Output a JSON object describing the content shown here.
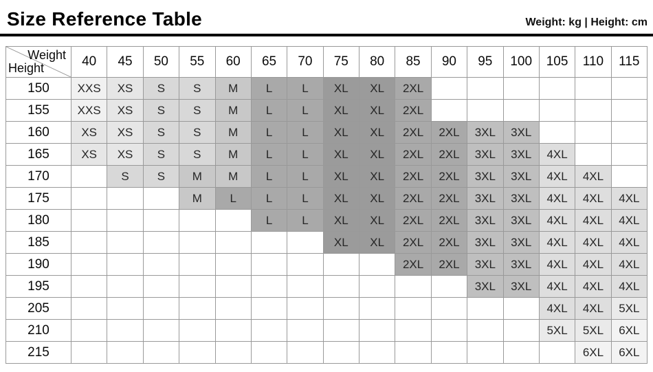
{
  "page": {
    "title": "Size Reference Table",
    "units_label": "Weight: kg | Height: cm"
  },
  "chart_data": {
    "type": "table",
    "title": "Size Reference Table",
    "corner": {
      "top_label": "Weight",
      "bottom_label": "Height"
    },
    "weight_columns": [
      "40",
      "45",
      "50",
      "55",
      "60",
      "65",
      "70",
      "75",
      "80",
      "85",
      "90",
      "95",
      "100",
      "105",
      "110",
      "115"
    ],
    "rows": [
      {
        "height": "150",
        "cells": [
          "XXS",
          "XS",
          "S",
          "S",
          "M",
          "L",
          "L",
          "XL",
          "XL",
          "2XL",
          "",
          "",
          "",
          "",
          "",
          ""
        ]
      },
      {
        "height": "155",
        "cells": [
          "XXS",
          "XS",
          "S",
          "S",
          "M",
          "L",
          "L",
          "XL",
          "XL",
          "2XL",
          "",
          "",
          "",
          "",
          "",
          ""
        ]
      },
      {
        "height": "160",
        "cells": [
          "XS",
          "XS",
          "S",
          "S",
          "M",
          "L",
          "L",
          "XL",
          "XL",
          "2XL",
          "2XL",
          "3XL",
          "3XL",
          "",
          "",
          ""
        ]
      },
      {
        "height": "165",
        "cells": [
          "XS",
          "XS",
          "S",
          "S",
          "M",
          "L",
          "L",
          "XL",
          "XL",
          "2XL",
          "2XL",
          "3XL",
          "3XL",
          "4XL",
          "",
          ""
        ]
      },
      {
        "height": "170",
        "cells": [
          "",
          "S",
          "S",
          "M",
          "M",
          "L",
          "L",
          "XL",
          "XL",
          "2XL",
          "2XL",
          "3XL",
          "3XL",
          "4XL",
          "4XL",
          ""
        ]
      },
      {
        "height": "175",
        "cells": [
          "",
          "",
          "",
          "M",
          "L",
          "L",
          "L",
          "XL",
          "XL",
          "2XL",
          "2XL",
          "3XL",
          "3XL",
          "4XL",
          "4XL",
          "4XL"
        ]
      },
      {
        "height": "180",
        "cells": [
          "",
          "",
          "",
          "",
          "",
          "L",
          "L",
          "XL",
          "XL",
          "2XL",
          "2XL",
          "3XL",
          "3XL",
          "4XL",
          "4XL",
          "4XL"
        ]
      },
      {
        "height": "185",
        "cells": [
          "",
          "",
          "",
          "",
          "",
          "",
          "",
          "XL",
          "XL",
          "2XL",
          "2XL",
          "3XL",
          "3XL",
          "4XL",
          "4XL",
          "4XL"
        ]
      },
      {
        "height": "190",
        "cells": [
          "",
          "",
          "",
          "",
          "",
          "",
          "",
          "",
          "",
          "2XL",
          "2XL",
          "3XL",
          "3XL",
          "4XL",
          "4XL",
          "4XL"
        ]
      },
      {
        "height": "195",
        "cells": [
          "",
          "",
          "",
          "",
          "",
          "",
          "",
          "",
          "",
          "",
          "",
          "3XL",
          "3XL",
          "4XL",
          "4XL",
          "4XL"
        ]
      },
      {
        "height": "205",
        "cells": [
          "",
          "",
          "",
          "",
          "",
          "",
          "",
          "",
          "",
          "",
          "",
          "",
          "",
          "4XL",
          "4XL",
          "5XL"
        ]
      },
      {
        "height": "210",
        "cells": [
          "",
          "",
          "",
          "",
          "",
          "",
          "",
          "",
          "",
          "",
          "",
          "",
          "",
          "5XL",
          "5XL",
          "6XL"
        ]
      },
      {
        "height": "215",
        "cells": [
          "",
          "",
          "",
          "",
          "",
          "",
          "",
          "",
          "",
          "",
          "",
          "",
          "",
          "",
          "6XL",
          "6XL"
        ]
      }
    ],
    "size_colors": {
      "XXS": "#f1f1f1",
      "XS": "#e6e6e6",
      "S": "#d8d8d8",
      "M": "#c8c8c8",
      "L": "#a9a9a9",
      "XL": "#9b9b9b",
      "2XL": "#a9a9a9",
      "3XL": "#bfbfbf",
      "4XL": "#dedede",
      "5XL": "#eaeaea",
      "6XL": "#f3f3f3"
    },
    "layout": {
      "grid_color": "#999999",
      "empty_cell_color": "#ffffff"
    }
  }
}
